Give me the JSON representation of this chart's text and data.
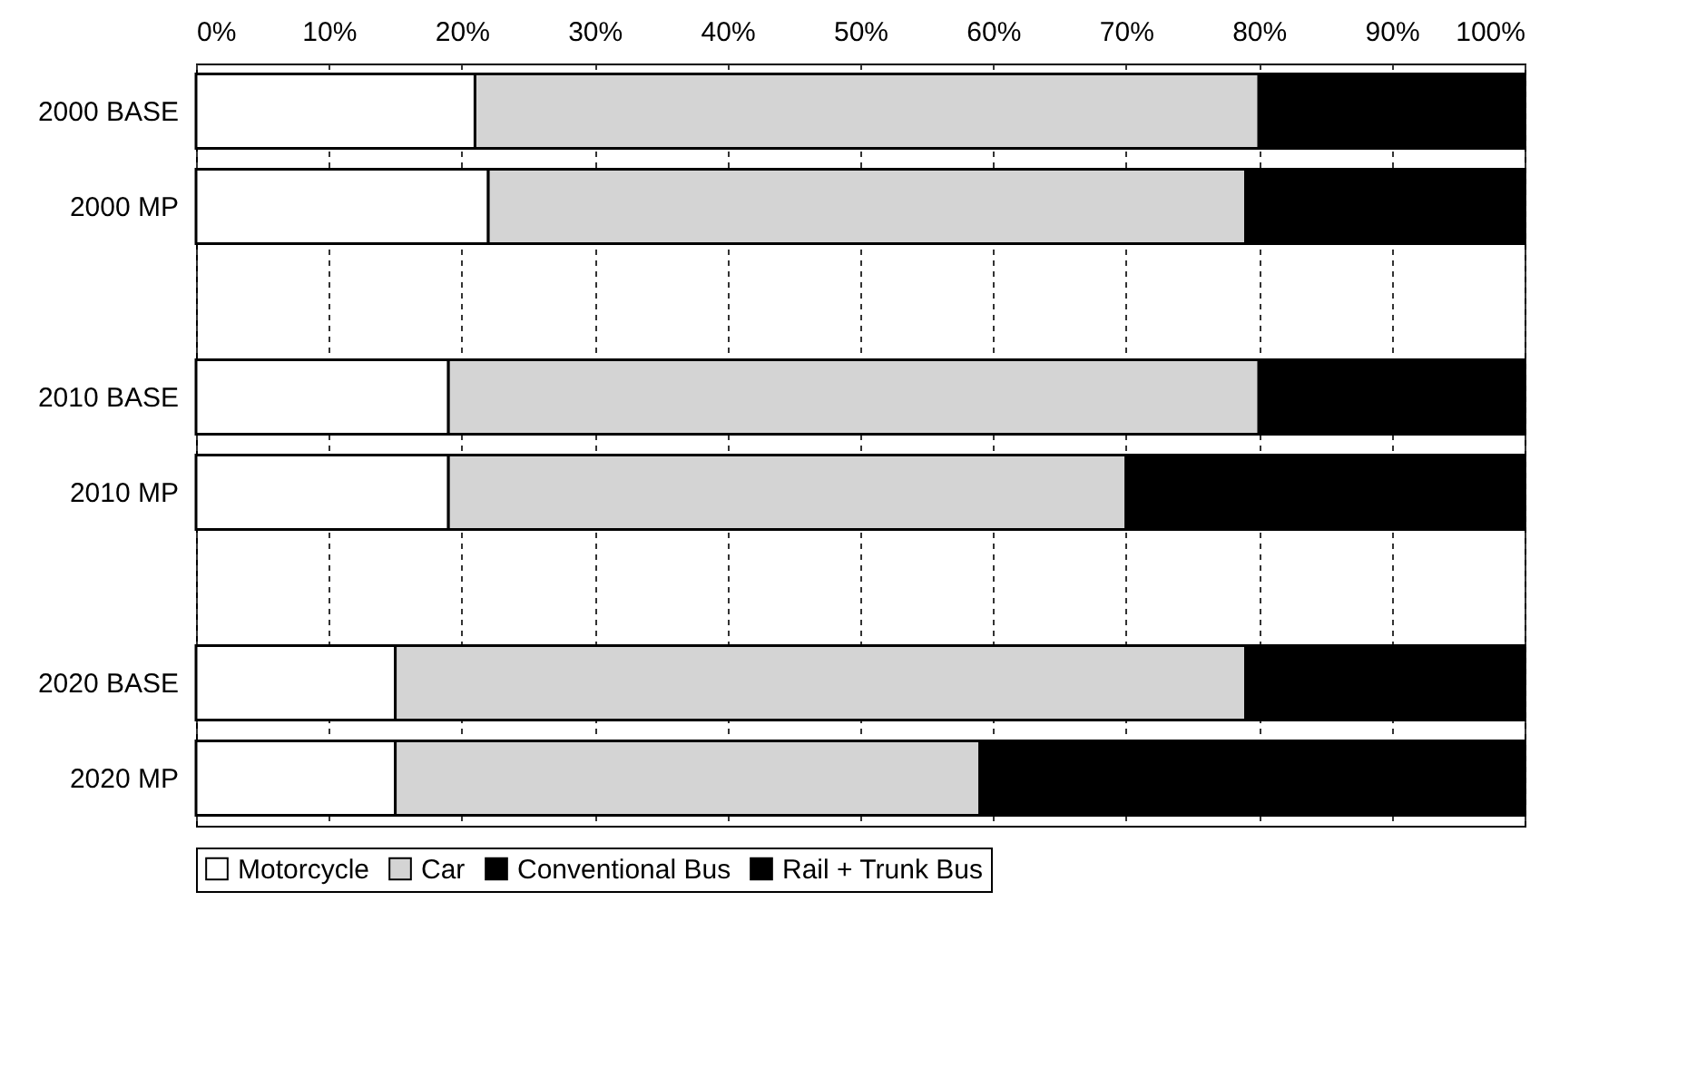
{
  "chart_data": {
    "type": "bar",
    "orientation": "horizontal",
    "stacked": true,
    "categories": [
      "2000 BASE",
      "2000 MP",
      null,
      "2010 BASE",
      "2010 MP",
      null,
      "2020 BASE",
      "2020 MP"
    ],
    "series": [
      {
        "name": "Motorcycle",
        "color": "#ffffff",
        "values": [
          21,
          22,
          null,
          19,
          19,
          null,
          15,
          15
        ]
      },
      {
        "name": "Car",
        "color": "#d4d4d4",
        "values": [
          59,
          57,
          null,
          61,
          51,
          null,
          64,
          44
        ]
      },
      {
        "name": "Conventional Bus",
        "color": "#000000",
        "values": [
          20,
          21,
          null,
          20,
          30,
          null,
          21,
          41
        ]
      },
      {
        "name": "Rail + Trunk Bus",
        "color": "#000000",
        "values": [
          null,
          null,
          null,
          null,
          null,
          null,
          null,
          null
        ]
      }
    ],
    "xlim": [
      0,
      100
    ],
    "xticks": [
      {
        "value": 0,
        "label": "0%"
      },
      {
        "value": 10,
        "label": "10%"
      },
      {
        "value": 20,
        "label": "20%"
      },
      {
        "value": 30,
        "label": "30%"
      },
      {
        "value": 40,
        "label": "40%"
      },
      {
        "value": 50,
        "label": "50%"
      },
      {
        "value": 60,
        "label": "60%"
      },
      {
        "value": 70,
        "label": "70%"
      },
      {
        "value": 80,
        "label": "80%"
      },
      {
        "value": 90,
        "label": "90%"
      },
      {
        "value": 100,
        "label": "100%"
      }
    ],
    "grid": "x",
    "legend": "bottom"
  }
}
